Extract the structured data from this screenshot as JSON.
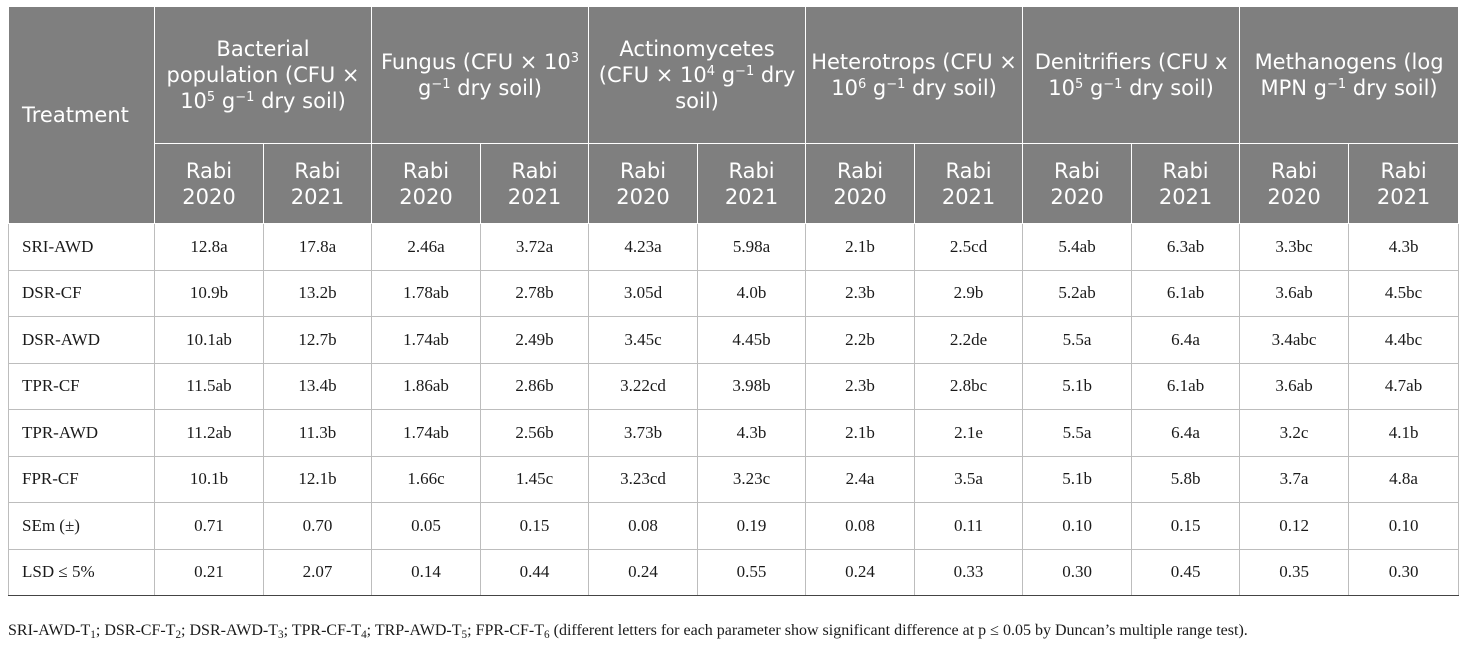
{
  "table": {
    "treatment_header": "Treatment",
    "param_headers": [
      {
        "pre": "Bacterial population (CFU × 10",
        "exp1": "5",
        "mid": " g",
        "exp2": "−1",
        "post": " dry soil)"
      },
      {
        "pre": "Fungus (CFU × 10",
        "exp1": "3",
        "mid": " g",
        "exp2": "−1",
        "post": " dry soil)"
      },
      {
        "pre": "Actinomycetes (CFU × 10",
        "exp1": "4",
        "mid": " g",
        "exp2": "−1",
        "post": " dry soil)"
      },
      {
        "pre": "Heterotrops (CFU × 10",
        "exp1": "6",
        "mid": " g",
        "exp2": "−1",
        "post": " dry soil)"
      },
      {
        "pre": "Denitrifiers (CFU x 10",
        "exp1": "5",
        "mid": " g",
        "exp2": "−1",
        "post": " dry soil)"
      },
      {
        "pre": "Methanogens (log MPN g",
        "exp1": "−1",
        "mid": " dry soil)",
        "exp2": "",
        "post": ""
      }
    ],
    "season_headers": [
      "Rabi 2020",
      "Rabi 2021",
      "Rabi 2020",
      "Rabi 2021",
      "Rabi 2020",
      "Rabi 2021",
      "Rabi 2020",
      "Rabi 2021",
      "Rabi 2020",
      "Rabi 2021",
      "Rabi 2020",
      "Rabi 2021"
    ],
    "rows": [
      {
        "label": "SRI-AWD",
        "values": [
          "12.8a",
          "17.8a",
          "2.46a",
          "3.72a",
          "4.23a",
          "5.98a",
          "2.1b",
          "2.5cd",
          "5.4ab",
          "6.3ab",
          "3.3bc",
          "4.3b"
        ]
      },
      {
        "label": "DSR-CF",
        "values": [
          "10.9b",
          "13.2b",
          "1.78ab",
          "2.78b",
          "3.05d",
          "4.0b",
          "2.3b",
          "2.9b",
          "5.2ab",
          "6.1ab",
          "3.6ab",
          "4.5bc"
        ]
      },
      {
        "label": "DSR-AWD",
        "values": [
          "10.1ab",
          "12.7b",
          "1.74ab",
          "2.49b",
          "3.45c",
          "4.45b",
          "2.2b",
          "2.2de",
          "5.5a",
          "6.4a",
          "3.4abc",
          "4.4bc"
        ]
      },
      {
        "label": "TPR-CF",
        "values": [
          "11.5ab",
          "13.4b",
          "1.86ab",
          "2.86b",
          "3.22cd",
          "3.98b",
          "2.3b",
          "2.8bc",
          "5.1b",
          "6.1ab",
          "3.6ab",
          "4.7ab"
        ]
      },
      {
        "label": "TPR-AWD",
        "values": [
          "11.2ab",
          "11.3b",
          "1.74ab",
          "2.56b",
          "3.73b",
          "4.3b",
          "2.1b",
          "2.1e",
          "5.5a",
          "6.4a",
          "3.2c",
          "4.1b"
        ]
      },
      {
        "label": "FPR-CF",
        "values": [
          "10.1b",
          "12.1b",
          "1.66c",
          "1.45c",
          "3.23cd",
          "3.23c",
          "2.4a",
          "3.5a",
          "5.1b",
          "5.8b",
          "3.7a",
          "4.8a"
        ]
      },
      {
        "label": "SEm (±)",
        "values": [
          "0.71",
          "0.70",
          "0.05",
          "0.15",
          "0.08",
          "0.19",
          "0.08",
          "0.11",
          "0.10",
          "0.15",
          "0.12",
          "0.10"
        ]
      },
      {
        "label": "LSD ≤ 5%",
        "values": [
          "0.21",
          "2.07",
          "0.14",
          "0.44",
          "0.24",
          "0.55",
          "0.24",
          "0.33",
          "0.30",
          "0.45",
          "0.35",
          "0.30"
        ]
      }
    ]
  },
  "footnote": {
    "codes": [
      {
        "name": "SRI-AWD-T",
        "sub": "1"
      },
      {
        "name": "DSR-CF-T",
        "sub": "2"
      },
      {
        "name": "DSR-AWD-T",
        "sub": "3"
      },
      {
        "name": "TPR-CF-T",
        "sub": "4"
      },
      {
        "name": "TRP-AWD-T",
        "sub": "5"
      },
      {
        "name": "FPR-CF-T",
        "sub": "6"
      }
    ],
    "separator": "; ",
    "tail": " (different letters for each parameter show significant difference at p ≤ 0.05 by Duncan’s multiple range test)."
  },
  "colors": {
    "header_bg": "#7f7f7f",
    "header_text": "#ffffff",
    "grid_line": "#bdbdbd",
    "body_text": "#1a1a1a"
  }
}
